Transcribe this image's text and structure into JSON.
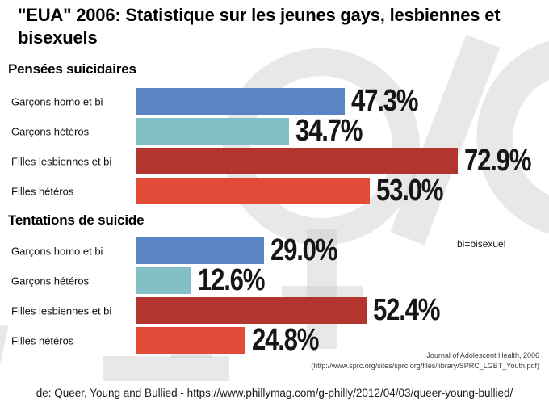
{
  "title": "\"EUA\" 2006: Statistique sur les jeunes gays, lesbiennes et bisexuels",
  "note": "bi=bisexuel",
  "source": {
    "line1": "Journal of Adolescent Health, 2006",
    "line2": "(http://www.sprc.org/sites/sprc.org/files/library/SPRC_LGBT_Youth.pdf)"
  },
  "caption": "de: Queer, Young and Bullied - https://www.phillymag.com/g-philly/2012/04/03/queer-young-bullied/",
  "watermark": {
    "icon": "female-symbol",
    "color": "#c9c9c9"
  },
  "chart_data": {
    "type": "bar",
    "orientation": "horizontal",
    "unit": "%",
    "xlim": [
      0,
      90
    ],
    "grid": false,
    "legend": "none",
    "bar_colors": [
      "#5b84c4",
      "#82c0c6",
      "#b23530",
      "#e14b38"
    ],
    "value_label_color": "#161616",
    "sections": [
      {
        "title": "Pensées suicidaires",
        "categories": [
          "Garçons homo et bi",
          "Garçons hétéros",
          "Filles lesbiennes et bi",
          "Filles hétéros"
        ],
        "values": [
          47.3,
          34.7,
          72.9,
          53.0
        ],
        "labels": [
          "47.3%",
          "34.7%",
          "72.9%",
          "53.0%"
        ]
      },
      {
        "title": "Tentations de suicide",
        "categories": [
          "Garçons homo et bi",
          "Garçons hétéros",
          "Filles lesbiennes et bi",
          "Filles hétéros"
        ],
        "values": [
          29.0,
          12.6,
          52.4,
          24.8
        ],
        "labels": [
          "29.0%",
          "12.6%",
          "52.4%",
          "24.8%"
        ]
      }
    ]
  }
}
